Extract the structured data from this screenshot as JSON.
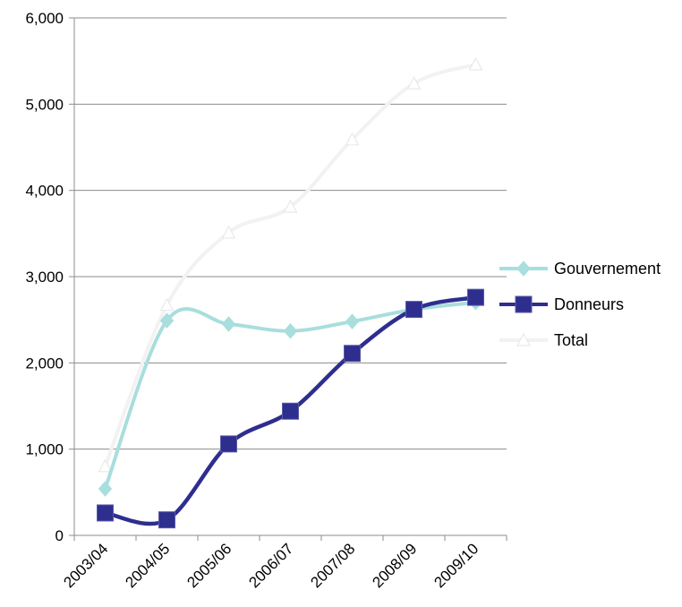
{
  "chart_data": {
    "type": "line",
    "categories": [
      "2003/04",
      "2004/05",
      "2005/06",
      "2006/07",
      "2007/08",
      "2008/09",
      "2009/10"
    ],
    "ylim": [
      0,
      6000
    ],
    "yticks": [
      0,
      1000,
      2000,
      3000,
      4000,
      5000,
      6000
    ],
    "ytick_labels": [
      "0",
      "1,000",
      "2,000",
      "3,000",
      "4,000",
      "5,000",
      "6,000"
    ],
    "grid": true,
    "smooth": true,
    "legend_position": "right",
    "series": [
      {
        "name": "Gouvernement",
        "color": "#a8dedd",
        "marker": "diamond",
        "values": [
          540,
          2490,
          2450,
          2370,
          2480,
          2620,
          2700
        ]
      },
      {
        "name": "Donneurs",
        "color": "#2e2e8f",
        "marker": "square",
        "values": [
          260,
          180,
          1060,
          1440,
          2110,
          2620,
          2760
        ]
      },
      {
        "name": "Total",
        "color": "#f2f2f2",
        "marker": "triangle",
        "values": [
          800,
          2670,
          3510,
          3810,
          4590,
          5240,
          5460
        ]
      }
    ]
  }
}
